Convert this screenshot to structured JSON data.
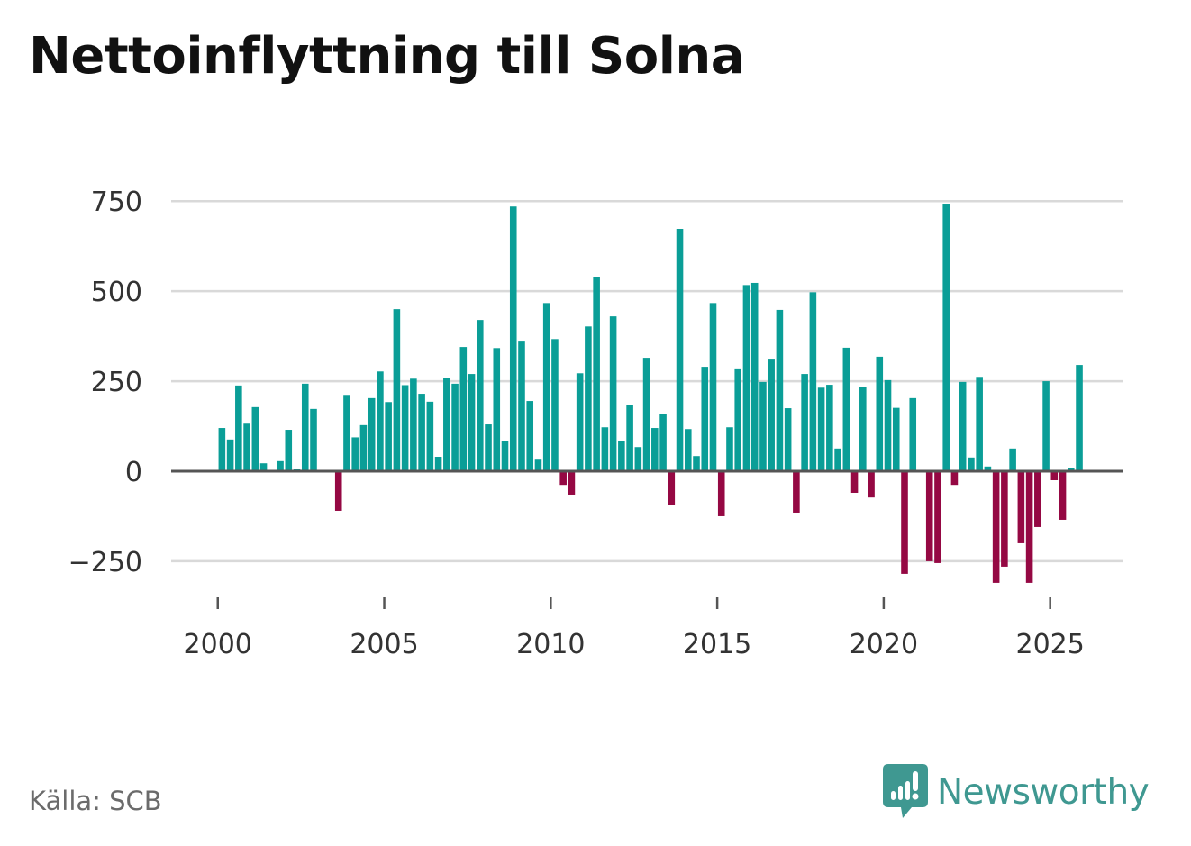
{
  "page": {
    "title": "Nettoinflyttning till Solna",
    "source": "Källa: SCB",
    "brand": "Newsworthy",
    "brand_icon": "newsworthy-logo-icon"
  },
  "colors": {
    "positive": "#0a9e97",
    "negative": "#950843",
    "grid": "#d9d9d9",
    "zero_line": "#555555",
    "brand": "#3f9891"
  },
  "chart_data": {
    "type": "bar",
    "title": "Nettoinflyttning till Solna",
    "xlabel": "",
    "ylabel": "",
    "ylim": [
      -375,
      800
    ],
    "xlim": [
      1998.6,
      2027.2
    ],
    "yticks": [
      750,
      500,
      250,
      0,
      -250
    ],
    "ytick_labels": [
      "750",
      "500",
      "250",
      "0",
      "−250"
    ],
    "xticks": [
      2000,
      2005,
      2010,
      2015,
      2020,
      2025
    ],
    "xtick_labels": [
      "2000",
      "2005",
      "2010",
      "2015",
      "2020",
      "2025"
    ],
    "grid": true,
    "frequency": "quarterly",
    "start": 2000.125,
    "step": 0.25,
    "values": [
      120,
      88,
      238,
      132,
      178,
      22,
      0,
      28,
      115,
      5,
      243,
      173,
      0,
      0,
      -110,
      212,
      94,
      128,
      203,
      277,
      192,
      450,
      239,
      257,
      215,
      193,
      40,
      260,
      243,
      345,
      270,
      420,
      130,
      342,
      85,
      735,
      360,
      195,
      32,
      467,
      367,
      -38,
      -65,
      272,
      402,
      540,
      122,
      430,
      83,
      185,
      67,
      315,
      120,
      158,
      -95,
      673,
      117,
      42,
      290,
      467,
      -125,
      122,
      283,
      517,
      523,
      248,
      310,
      448,
      175,
      -115,
      270,
      497,
      232,
      240,
      63,
      343,
      -60,
      233,
      -73,
      318,
      253,
      176,
      -285,
      203,
      0,
      -250,
      -255,
      743,
      -38,
      248,
      38,
      262,
      13,
      -310,
      -265,
      63,
      -200,
      -310,
      -155,
      250,
      -25,
      -135,
      8,
      295
    ]
  }
}
